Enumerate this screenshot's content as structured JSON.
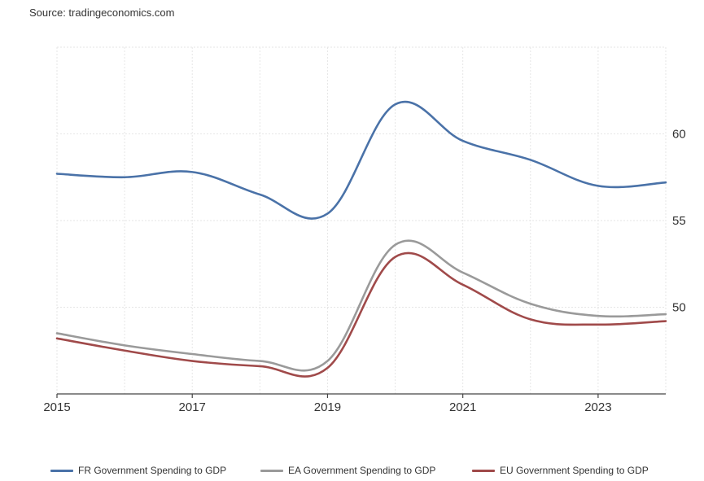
{
  "source": "Source: tradingeconomics.com",
  "chart_data": {
    "type": "line",
    "title": "",
    "xlabel": "",
    "ylabel": "",
    "x": [
      2015,
      2016,
      2017,
      2018,
      2019,
      2020,
      2021,
      2022,
      2023,
      2024
    ],
    "xlim": [
      2015,
      2024
    ],
    "ylim": [
      45,
      65
    ],
    "x_ticks": [
      "2015",
      "2017",
      "2019",
      "2021",
      "2023"
    ],
    "y_ticks": [
      "50",
      "55",
      "60"
    ],
    "y_axis_side": "right",
    "grid": true,
    "legend_position": "bottom",
    "series": [
      {
        "name": "FR Government Spending to GDP",
        "color": "#4a72a8",
        "values": [
          57.7,
          57.5,
          57.8,
          56.5,
          55.4,
          61.7,
          59.6,
          58.5,
          57.0,
          57.2
        ]
      },
      {
        "name": "EA Government Spending to GDP",
        "color": "#9a9a9a",
        "values": [
          48.5,
          47.8,
          47.3,
          46.9,
          46.9,
          53.6,
          52.0,
          50.2,
          49.5,
          49.6
        ]
      },
      {
        "name": "EU Government Spending to GDP",
        "color": "#a04a4a",
        "values": [
          48.2,
          47.5,
          46.9,
          46.6,
          46.5,
          52.9,
          51.3,
          49.3,
          49.0,
          49.2
        ]
      }
    ]
  }
}
